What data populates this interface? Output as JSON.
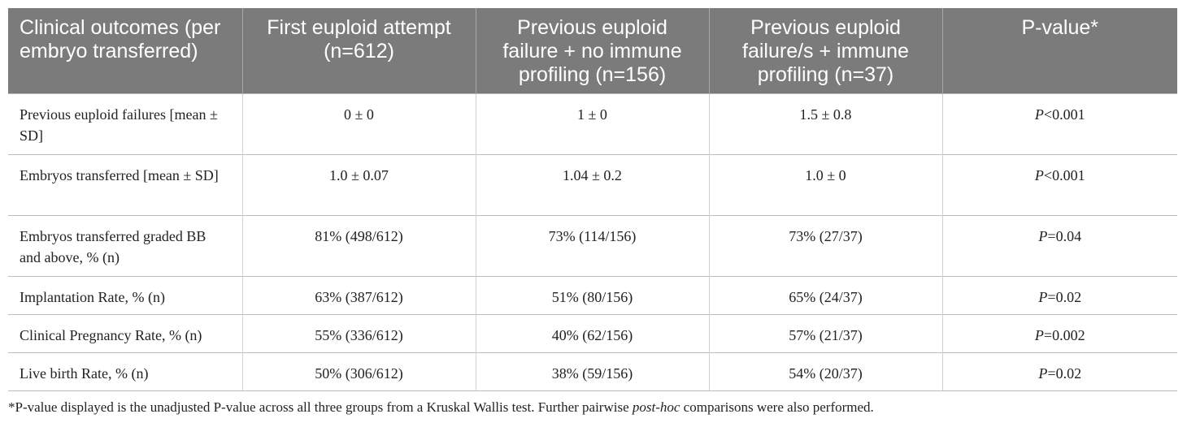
{
  "table": {
    "headers": [
      "Clinical outcomes (per embryo transferred)",
      "First euploid attempt (n=612)",
      "Previous euploid failure + no immune profiling (n=156)",
      "Previous euploid failure/s + immune profiling (n=37)",
      "P-value*"
    ],
    "rows": [
      {
        "label": "Previous euploid failures [mean ± SD]",
        "first": "0 ± 0",
        "no_immune": "1 ± 0",
        "immune": "1.5 ± 0.8",
        "p_letter": "P",
        "p_rest": "<0.001"
      },
      {
        "label": "Embryos transferred [mean ± SD]",
        "first": "1.0 ± 0.07",
        "no_immune": "1.04 ± 0.2",
        "immune": "1.0 ± 0",
        "p_letter": "P",
        "p_rest": "<0.001"
      },
      {
        "label": "Embryos transferred graded BB and above, % (n)",
        "first": "81% (498/612)",
        "no_immune": "73% (114/156)",
        "immune": "73% (27/37)",
        "p_letter": "P",
        "p_rest": "=0.04"
      },
      {
        "label": "Implantation Rate, % (n)",
        "first": "63% (387/612)",
        "no_immune": "51% (80/156)",
        "immune": "65% (24/37)",
        "p_letter": "P",
        "p_rest": "=0.02"
      },
      {
        "label": "Clinical Pregnancy Rate, % (n)",
        "first": "55% (336/612)",
        "no_immune": "40% (62/156)",
        "immune": "57% (21/37)",
        "p_letter": "P",
        "p_rest": "=0.002"
      },
      {
        "label": "Live birth Rate, % (n)",
        "first": "50% (306/612)",
        "no_immune": "38% (59/156)",
        "immune": "54% (20/37)",
        "p_letter": "P",
        "p_rest": "=0.02"
      }
    ]
  },
  "footnote": {
    "before": "*P-value displayed is the unadjusted P-value across all three groups from a Kruskal Wallis test. Further pairwise ",
    "italic": "post-hoc",
    "after": " comparisons were also performed."
  }
}
